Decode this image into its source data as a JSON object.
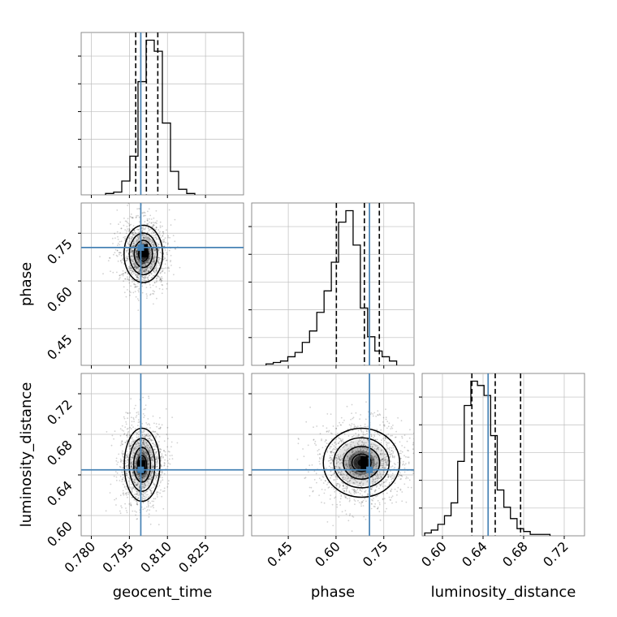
{
  "chart_data": {
    "type": "corner",
    "parameters": [
      "geocent_time",
      "phase",
      "luminosity_distance"
    ],
    "axis_labels": {
      "geocent_time": "geocent_time",
      "phase": "phase",
      "luminosity_distance": "luminosity_distance"
    },
    "ranges": {
      "geocent_time": [
        0.776,
        0.84
      ],
      "phase": [
        0.335,
        0.845
      ],
      "luminosity_distance": [
        0.58,
        0.74
      ]
    },
    "ticks": {
      "geocent_time": {
        "values": [
          0.78,
          0.795,
          0.81,
          0.825
        ],
        "labels": [
          "0.780",
          "0.795",
          "0.810",
          "0.825"
        ]
      },
      "phase": {
        "values": [
          0.45,
          0.6,
          0.75
        ],
        "labels": [
          "0.45",
          "0.60",
          "0.75"
        ]
      },
      "luminosity_distance": {
        "values": [
          0.6,
          0.64,
          0.68,
          0.72
        ],
        "labels": [
          "0.60",
          "0.64",
          "0.68",
          "0.72"
        ]
      }
    },
    "truths": {
      "geocent_time": 0.7995,
      "phase": 0.705,
      "luminosity_distance": 0.645
    },
    "quantiles": {
      "geocent_time": [
        0.7975,
        0.8017,
        0.8062
      ],
      "phase": [
        0.601,
        0.689,
        0.736
      ],
      "luminosity_distance": [
        0.629,
        0.652,
        0.677
      ]
    },
    "histograms": {
      "geocent_time": {
        "bin_edges_start": 0.7856,
        "bin_width": 0.0032,
        "counts": [
          1,
          2,
          10,
          28,
          82,
          112,
          104,
          52,
          17,
          4,
          1
        ]
      },
      "phase": {
        "bin_edges_start": 0.38,
        "bin_width": 0.0228,
        "counts": [
          1,
          2,
          3,
          6,
          9,
          16,
          24,
          37,
          52,
          72,
          100,
          108,
          84,
          40,
          20,
          10,
          6,
          3
        ]
      },
      "luminosity_distance": {
        "bin_edges_start": 0.5825,
        "bin_width": 0.0065,
        "counts": [
          2,
          4,
          8,
          14,
          23,
          52,
          91,
          108,
          105,
          98,
          70,
          32,
          20,
          12,
          5,
          3,
          1,
          1,
          1
        ]
      }
    },
    "density_2d": [
      {
        "x": "geocent_time",
        "y": "phase",
        "center": [
          0.8005,
          0.685
        ],
        "sigma": [
          0.0038,
          0.045
        ],
        "peak_cell": [
          0.801,
          0.695
        ]
      },
      {
        "x": "geocent_time",
        "y": "luminosity_distance",
        "center": [
          0.8,
          0.65
        ],
        "sigma": [
          0.0035,
          0.018
        ],
        "peak_cell": [
          0.8,
          0.648
        ]
      },
      {
        "x": "phase",
        "y": "luminosity_distance",
        "center": [
          0.68,
          0.652
        ],
        "sigma": [
          0.06,
          0.017
        ],
        "peak_cell": [
          0.69,
          0.652
        ]
      }
    ],
    "grid": true
  }
}
